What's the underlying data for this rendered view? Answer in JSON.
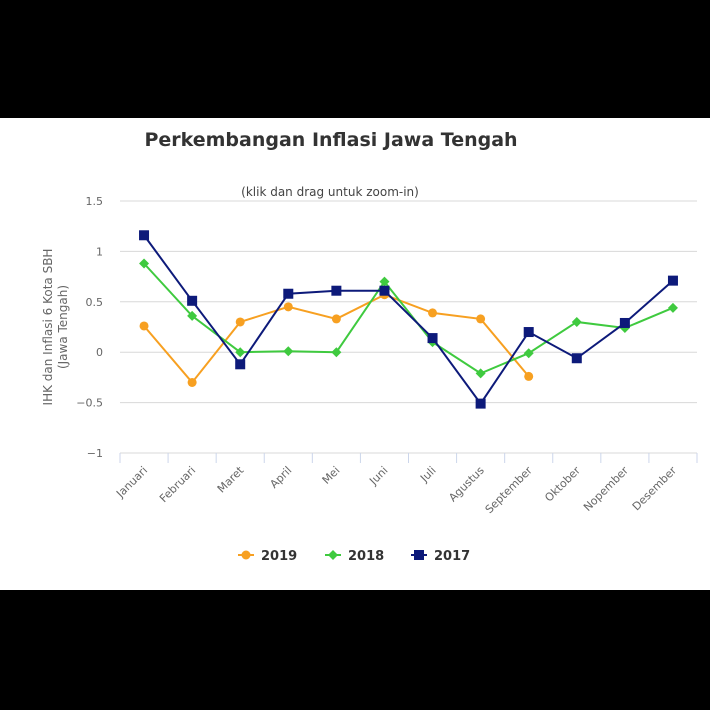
{
  "chart_data": {
    "type": "line",
    "title": "Perkembangan Inflasi Jawa Tengah",
    "subtitle": "(klik dan drag untuk zoom-in)",
    "ylabel_lines": [
      "IHK dan Inflasi 6 Kota SBH",
      "(Jawa Tengah)"
    ],
    "xlabel": "",
    "categories": [
      "Januari",
      "Februari",
      "Maret",
      "April",
      "Mei",
      "Juni",
      "Juli",
      "Agustus",
      "September",
      "Oktober",
      "Nopember",
      "Desember"
    ],
    "ylim": [
      -1,
      1.5
    ],
    "yticks": [
      1.5,
      1,
      0.5,
      0,
      -0.5,
      -1
    ],
    "ytick_labels": [
      "1.5",
      "1",
      "0.5",
      "0",
      "−0.5",
      "−1"
    ],
    "grid": true,
    "legend_position": "bottom",
    "series": [
      {
        "name": "2019",
        "color": "#f7a021",
        "marker": "circle",
        "values": [
          0.26,
          -0.3,
          0.3,
          0.45,
          0.33,
          0.57,
          0.39,
          0.33,
          -0.24,
          null,
          null,
          null
        ]
      },
      {
        "name": "2018",
        "color": "#3fca3f",
        "marker": "diamond",
        "values": [
          0.88,
          0.36,
          0.0,
          0.01,
          0.0,
          0.7,
          0.1,
          -0.21,
          -0.01,
          0.3,
          0.24,
          0.44
        ]
      },
      {
        "name": "2017",
        "color": "#0d1a7a",
        "marker": "square",
        "values": [
          1.16,
          0.51,
          -0.12,
          0.58,
          0.61,
          0.61,
          0.14,
          -0.51,
          0.2,
          -0.06,
          0.29,
          0.71
        ]
      }
    ]
  }
}
